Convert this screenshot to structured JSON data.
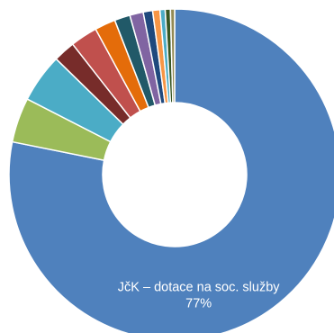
{
  "chart_data": {
    "type": "pie",
    "subtype": "donut",
    "title": "",
    "slices": [
      {
        "label": "JčK – dotace na soc. služby",
        "value": 77,
        "color": "#4F81BD",
        "show_label": true
      },
      {
        "label": "",
        "value": 4.3,
        "color": "#9BBB59",
        "show_label": false
      },
      {
        "label": "",
        "value": 4.7,
        "color": "#4BACC6",
        "show_label": false
      },
      {
        "label": "",
        "value": 2.1,
        "color": "#772C2A",
        "show_label": false
      },
      {
        "label": "",
        "value": 2.6,
        "color": "#C0504D",
        "show_label": false
      },
      {
        "label": "",
        "value": 2.0,
        "color": "#E46C0A",
        "show_label": false
      },
      {
        "label": "",
        "value": 1.5,
        "color": "#215968",
        "show_label": false
      },
      {
        "label": "",
        "value": 1.3,
        "color": "#8064A2",
        "show_label": false
      },
      {
        "label": "",
        "value": 0.9,
        "color": "#1F497D",
        "show_label": false
      },
      {
        "label": "",
        "value": 0.7,
        "color": "#F79646",
        "show_label": false
      },
      {
        "label": "",
        "value": 0.5,
        "color": "#4BACC6",
        "show_label": false
      },
      {
        "label": "",
        "value": 0.5,
        "color": "#375623",
        "show_label": false
      },
      {
        "label": "",
        "value": 0.4,
        "color": "#948A54",
        "show_label": false
      }
    ],
    "legend": "none",
    "separator_color": "#ffffff"
  }
}
